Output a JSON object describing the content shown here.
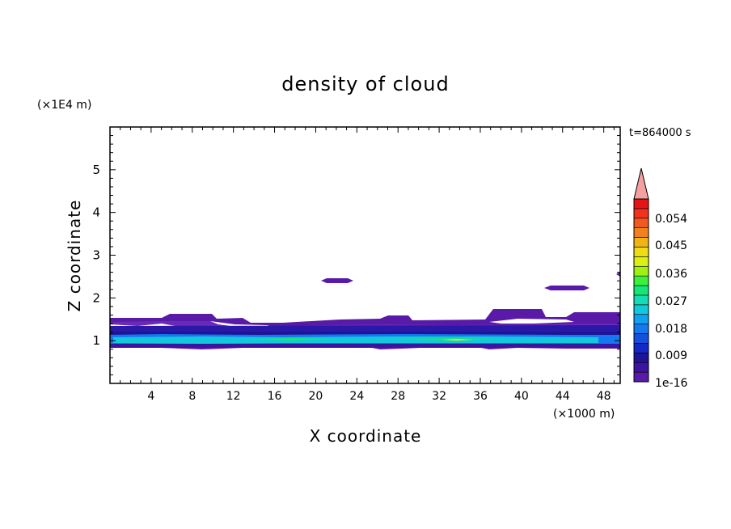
{
  "chart_data": {
    "type": "heatmap",
    "title": "density of cloud",
    "xlabel": "X coordinate",
    "ylabel": "Z coordinate",
    "x_unit": "(×1000 m)",
    "y_unit": "(×1E4 m)",
    "time_label": "t=864000 s",
    "xlim": [
      0,
      49.6
    ],
    "ylim": [
      0,
      6
    ],
    "x_ticks": [
      4,
      8,
      12,
      16,
      20,
      24,
      28,
      32,
      36,
      40,
      44,
      48
    ],
    "y_ticks": [
      1,
      2,
      3,
      4,
      5
    ],
    "colorbar": {
      "labels": [
        "1e-16",
        "0.009",
        "0.018",
        "0.027",
        "0.036",
        "0.045",
        "0.054"
      ],
      "colors": [
        "#5a1aa8",
        "#3c14a0",
        "#1e1496",
        "#1428c8",
        "#1450dc",
        "#1478f0",
        "#14a0f0",
        "#14c8dc",
        "#14dcb4",
        "#14e678",
        "#3cf03c",
        "#a0f014",
        "#dcf014",
        "#f0dc14",
        "#f0b414",
        "#f0821e",
        "#f05a1e",
        "#f0321e",
        "#e61414"
      ],
      "extend_color": "#f4a0a0"
    },
    "layers": [
      {
        "level": "1e-16",
        "color": "#5a1aa8",
        "region": "cloud layer",
        "x": [
          0,
          49.6
        ],
        "z": [
          0.8,
          1.55
        ]
      },
      {
        "level": "1e-16",
        "color": "#5a1aa8",
        "region": "isolated patch",
        "x": [
          20.8,
          23.6
        ],
        "z": [
          2.33,
          2.45
        ]
      },
      {
        "level": "1e-16",
        "color": "#5a1aa8",
        "region": "isolated patch",
        "x": [
          42.6,
          46.2
        ],
        "z": [
          2.2,
          2.3
        ]
      },
      {
        "level": "0.009",
        "color": "#1e1496",
        "region": "cloud core",
        "x": [
          0,
          49.6
        ],
        "z": [
          0.85,
          1.3
        ]
      },
      {
        "level": "0.018",
        "color": "#1478f0",
        "region": "cloud core",
        "x": [
          0,
          49.6
        ],
        "z": [
          0.9,
          1.1
        ]
      },
      {
        "level": "0.027",
        "color": "#14dcb4",
        "region": "cloud core",
        "x": [
          1,
          48
        ],
        "z": [
          0.94,
          1.03
        ]
      },
      {
        "level": "0.036",
        "color": "#dcf014",
        "region": "maximum",
        "x": [
          33,
          36
        ],
        "z": [
          0.96,
          1.0
        ]
      }
    ]
  }
}
